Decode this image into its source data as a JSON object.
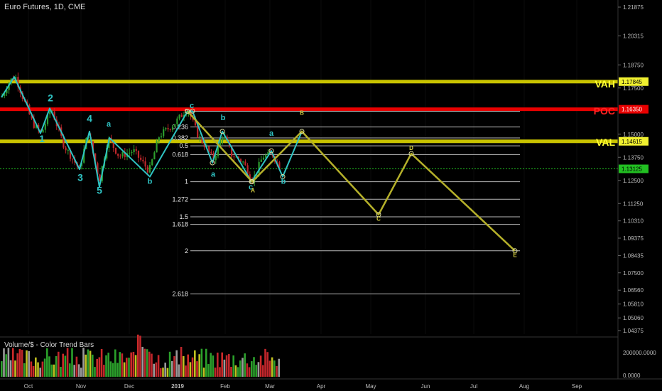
{
  "header": {
    "title": "Euro Futures, 1D, CME"
  },
  "volume_panel": {
    "title": "Volume/$ - Color Trend Bars",
    "scale_top": "200000.0000",
    "scale_bottom": "0.0000"
  },
  "colors": {
    "background": "#000000",
    "vah_val": "#c9c300",
    "poc": "#e80000",
    "wave_cyan": "#2fc4c4",
    "projection": "#b5b02a",
    "marker_green": "#22c022",
    "bull_bar": "#2d9e2d",
    "bear_bar": "#c0262b"
  },
  "chart_data": {
    "type": "candlestick",
    "symbol": "Euro Futures",
    "interval": "1D",
    "exchange": "CME",
    "y_axis_ticks": [
      "1.21875",
      "1.20315",
      "1.18750",
      "1.17500",
      "1.15000",
      "1.13750",
      "1.12500",
      "1.11250",
      "1.10310",
      "1.09375",
      "1.08435",
      "1.07500",
      "1.06560",
      "1.05810",
      "1.05060",
      "1.04375"
    ],
    "x_axis_ticks": [
      "Oct",
      "Nov",
      "Dec",
      "2019",
      "Feb",
      "Mar",
      "Apr",
      "May",
      "Jun",
      "Jul",
      "Aug",
      "Sep"
    ],
    "levels": [
      {
        "label": "VAH",
        "price": "1.17845",
        "price_num": 1.17845,
        "color": "#c9c300",
        "label_color": "#ffff33"
      },
      {
        "label": "POC",
        "price": "1.16350",
        "price_num": 1.1635,
        "color": "#e80000",
        "label_color": "#ff2222"
      },
      {
        "label": "VAL",
        "price": "1.14615",
        "price_num": 1.14615,
        "color": "#c9c300",
        "label_color": "#ffff33"
      },
      {
        "label": "",
        "price": "1.13125",
        "price_num": 1.13125,
        "color": "#22c022",
        "label_color": "#22c022"
      }
    ],
    "fib_levels": [
      {
        "label": "0",
        "price": 1.1624
      },
      {
        "label": "0.236",
        "price": 1.1539
      },
      {
        "label": "0.382",
        "price": 1.148
      },
      {
        "label": "0.5",
        "price": 1.1437
      },
      {
        "label": "0.618",
        "price": 1.139
      },
      {
        "label": "1",
        "price": 1.1243
      },
      {
        "label": "1.272",
        "price": 1.1148
      },
      {
        "label": "1.5",
        "price": 1.1053
      },
      {
        "label": "1.618",
        "price": 1.1012
      },
      {
        "label": "2",
        "price": 1.0869
      },
      {
        "label": "2.618",
        "price": 1.0636
      }
    ],
    "wave_labels": [
      {
        "text": "2",
        "price": 1.1695,
        "color": "#2fc4c4",
        "size": 14
      },
      {
        "text": "1",
        "price": 1.1475,
        "color": "#2fc4c4",
        "size": 14
      },
      {
        "text": "4",
        "price": 1.1585,
        "color": "#2fc4c4",
        "size": 14
      },
      {
        "text": "3",
        "price": 1.1265,
        "color": "#2fc4c4",
        "size": 14
      },
      {
        "text": "5",
        "price": 1.1195,
        "color": "#2fc4c4",
        "size": 14
      },
      {
        "text": "a",
        "price": 1.1555,
        "color": "#2fc4c4",
        "size": 11
      },
      {
        "text": "b",
        "price": 1.1245,
        "color": "#2fc4c4",
        "size": 11
      },
      {
        "text": "c",
        "price": 1.1655,
        "color": "#2fc4c4",
        "size": 11
      },
      {
        "text": "b",
        "price": 1.159,
        "color": "#2fc4c4",
        "size": 11
      },
      {
        "text": "a",
        "price": 1.1285,
        "color": "#2fc4c4",
        "size": 11
      },
      {
        "text": "c",
        "price": 1.1215,
        "color": "#2fc4c4",
        "size": 11
      },
      {
        "text": "a",
        "price": 1.1505,
        "color": "#2fc4c4",
        "size": 11
      },
      {
        "text": "b",
        "price": 1.1245,
        "color": "#2fc4c4",
        "size": 11
      },
      {
        "text": "A",
        "price": 1.1195,
        "color": "#d8d040",
        "size": 8
      },
      {
        "text": "B",
        "price": 1.1615,
        "color": "#d8d040",
        "size": 8
      },
      {
        "text": "C",
        "price": 1.1042,
        "color": "#d8d040",
        "size": 8
      },
      {
        "text": "D",
        "price": 1.1425,
        "color": "#d8d040",
        "size": 8
      },
      {
        "text": "E",
        "price": 1.0845,
        "color": "#d8d040",
        "size": 8
      }
    ]
  }
}
